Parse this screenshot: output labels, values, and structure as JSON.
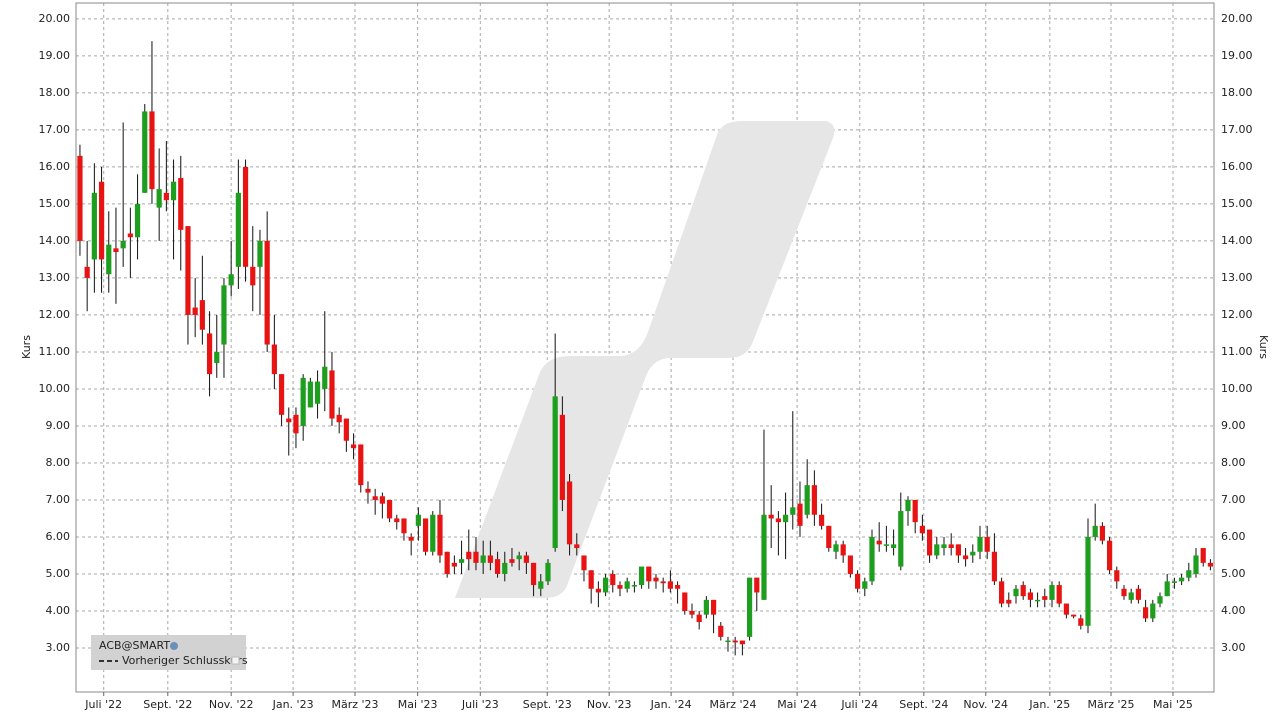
{
  "chart_data": {
    "type": "candlestick",
    "y_label": "Kurs",
    "up_color": "#1e9e1e",
    "down_color": "#e81414",
    "wick_color": "#111111",
    "grid": true,
    "legend": "lower left",
    "ylim": [
      1.81,
      20.43
    ],
    "yticks": [
      {
        "value": 3,
        "label": "3.00"
      },
      {
        "value": 4,
        "label": "4.00"
      },
      {
        "value": 5,
        "label": "5.00"
      },
      {
        "value": 6,
        "label": "6.00"
      },
      {
        "value": 7,
        "label": "7.00"
      },
      {
        "value": 8,
        "label": "8.00"
      },
      {
        "value": 9,
        "label": "9.00"
      },
      {
        "value": 10,
        "label": "10.00"
      },
      {
        "value": 11,
        "label": "11.00"
      },
      {
        "value": 12,
        "label": "12.00"
      },
      {
        "value": 13,
        "label": "13.00"
      },
      {
        "value": 14,
        "label": "14.00"
      },
      {
        "value": 15,
        "label": "15.00"
      },
      {
        "value": 16,
        "label": "16.00"
      },
      {
        "value": 17,
        "label": "17.00"
      },
      {
        "value": 18,
        "label": "18.00"
      },
      {
        "value": 19,
        "label": "19.00"
      },
      {
        "value": 20,
        "label": "20.00"
      }
    ],
    "xlim": [
      -0.55,
      157.5
    ],
    "xticks": [
      {
        "value": 3.3,
        "label": "Juli '22"
      },
      {
        "value": 12.2,
        "label": "Sept. '22"
      },
      {
        "value": 21.0,
        "label": "Nov. '22"
      },
      {
        "value": 29.6,
        "label": "Jan. '23"
      },
      {
        "value": 38.2,
        "label": "März '23"
      },
      {
        "value": 46.9,
        "label": "Mai '23"
      },
      {
        "value": 55.6,
        "label": "Juli '23"
      },
      {
        "value": 64.9,
        "label": "Sept. '23"
      },
      {
        "value": 73.5,
        "label": "Nov. '23"
      },
      {
        "value": 82.1,
        "label": "Jan. '24"
      },
      {
        "value": 90.7,
        "label": "März '24"
      },
      {
        "value": 99.6,
        "label": "Mai '24"
      },
      {
        "value": 108.3,
        "label": "Juli '24"
      },
      {
        "value": 117.2,
        "label": "Sept. '24"
      },
      {
        "value": 125.8,
        "label": "Nov. '24"
      },
      {
        "value": 134.7,
        "label": "Jan. '25"
      },
      {
        "value": 143.2,
        "label": "März '25"
      },
      {
        "value": 151.8,
        "label": "Mai '25"
      }
    ],
    "series": [
      {
        "name": "ACB@SMART",
        "open": [
          16.3,
          13.3,
          13.5,
          15.6,
          13.1,
          13.8,
          13.8,
          14.2,
          14.1,
          15.3,
          17.5,
          14.9,
          15.3,
          15.1,
          15.7,
          14.4,
          12.2,
          12.4,
          11.5,
          10.7,
          11.2,
          12.8,
          13.3,
          16.0,
          13.3,
          13.3,
          14.0,
          11.2,
          10.4,
          9.2,
          9.3,
          9.0,
          9.5,
          9.6,
          10.0,
          10.5,
          9.3,
          9.2,
          8.5,
          8.5,
          7.3,
          7.1,
          7.1,
          7.0,
          6.5,
          6.5,
          6.0,
          6.3,
          6.5,
          5.6,
          6.6,
          5.6,
          5.3,
          5.3,
          5.6,
          5.6,
          5.3,
          5.5,
          5.4,
          5.0,
          5.4,
          5.4,
          5.5,
          5.3,
          4.6,
          4.8,
          5.7,
          9.3,
          7.5,
          5.8,
          5.5,
          5.1,
          4.6,
          4.5,
          5.0,
          4.7,
          4.6,
          4.7,
          4.7,
          5.2,
          4.9,
          4.8,
          4.8,
          4.7,
          4.5,
          4.0,
          3.9,
          3.9,
          4.3,
          3.6,
          3.2,
          3.2,
          3.2,
          3.3,
          4.9,
          4.3,
          6.6,
          6.5,
          6.4,
          6.6,
          6.9,
          6.6,
          7.4,
          6.6,
          6.3,
          5.6,
          5.8,
          5.5,
          5.0,
          4.6,
          4.8,
          5.9,
          5.8,
          5.7,
          5.2,
          6.7,
          7.0,
          6.3,
          6.2,
          5.5,
          5.7,
          5.8,
          5.8,
          5.5,
          5.5,
          5.6,
          6.0,
          5.6,
          4.8,
          4.3,
          4.4,
          4.7,
          4.5,
          4.3,
          4.4,
          4.3,
          4.7,
          4.2,
          3.9,
          3.8,
          3.6,
          6.0,
          6.3,
          5.9,
          5.1,
          4.6,
          4.3,
          4.6,
          4.1,
          3.8,
          4.2,
          4.4,
          4.8,
          4.8,
          4.9,
          5.0,
          5.7,
          5.3
        ],
        "high": [
          16.6,
          14.0,
          16.1,
          16.0,
          14.8,
          14.9,
          17.2,
          14.9,
          15.8,
          17.7,
          19.4,
          16.5,
          16.7,
          16.2,
          16.3,
          14.4,
          13.0,
          13.6,
          12.1,
          12.0,
          13.0,
          14.0,
          16.2,
          16.2,
          14.4,
          14.3,
          14.8,
          12.0,
          10.4,
          9.5,
          9.5,
          10.4,
          10.3,
          10.5,
          12.1,
          11.0,
          9.5,
          9.2,
          8.8,
          8.5,
          7.5,
          7.3,
          7.2,
          7.0,
          6.6,
          6.5,
          6.1,
          6.8,
          6.5,
          6.7,
          7.0,
          5.6,
          5.5,
          5.9,
          6.2,
          6.0,
          5.9,
          5.9,
          5.6,
          5.6,
          5.7,
          5.6,
          5.6,
          5.3,
          5.0,
          5.4,
          11.5,
          9.8,
          7.7,
          6.1,
          5.5,
          5.1,
          4.8,
          5.0,
          5.1,
          4.8,
          4.9,
          4.8,
          5.2,
          5.2,
          5.0,
          4.9,
          5.1,
          4.8,
          4.5,
          4.2,
          4.0,
          4.4,
          4.3,
          3.7,
          3.3,
          3.3,
          3.2,
          4.9,
          4.9,
          8.9,
          7.4,
          6.7,
          7.2,
          9.4,
          7.5,
          8.1,
          7.8,
          6.9,
          6.3,
          5.9,
          5.9,
          5.5,
          5.1,
          4.9,
          6.2,
          6.4,
          6.3,
          6.2,
          7.2,
          7.1,
          7.0,
          6.6,
          6.2,
          6.0,
          6.0,
          6.1,
          5.8,
          5.7,
          5.8,
          6.3,
          6.3,
          6.1,
          4.9,
          4.5,
          4.7,
          4.8,
          4.6,
          4.5,
          4.6,
          4.8,
          4.8,
          4.2,
          3.9,
          3.9,
          6.5,
          6.9,
          6.4,
          6.0,
          5.2,
          4.7,
          4.6,
          4.7,
          4.3,
          4.3,
          4.5,
          5.0,
          4.9,
          5.0,
          5.3,
          5.7,
          5.7,
          5.4
        ],
        "low": [
          13.6,
          12.1,
          12.6,
          12.6,
          12.6,
          12.3,
          13.3,
          13.0,
          13.5,
          15.3,
          15.0,
          14.0,
          14.8,
          13.5,
          13.2,
          11.2,
          11.4,
          11.2,
          9.8,
          10.3,
          10.3,
          12.5,
          12.7,
          12.9,
          12.1,
          12.0,
          11.0,
          10.0,
          9.0,
          8.2,
          8.4,
          8.6,
          9.5,
          9.2,
          9.4,
          9.0,
          8.8,
          8.3,
          8.1,
          7.2,
          6.9,
          6.6,
          6.5,
          6.4,
          6.2,
          5.9,
          5.5,
          5.9,
          5.5,
          5.5,
          5.3,
          4.9,
          5.0,
          5.0,
          5.1,
          5.1,
          5.0,
          5.1,
          4.9,
          4.8,
          5.2,
          5.1,
          5.0,
          4.4,
          4.4,
          4.7,
          5.6,
          6.7,
          5.5,
          5.5,
          4.8,
          4.2,
          4.1,
          4.4,
          4.5,
          4.4,
          4.5,
          4.5,
          4.6,
          4.6,
          4.6,
          4.5,
          4.5,
          4.2,
          3.9,
          3.8,
          3.5,
          3.8,
          3.4,
          3.2,
          2.9,
          2.8,
          2.8,
          3.2,
          4.0,
          4.3,
          5.7,
          5.5,
          5.4,
          6.2,
          6.0,
          6.5,
          6.3,
          6.2,
          5.6,
          5.4,
          5.3,
          4.9,
          4.5,
          4.4,
          4.7,
          5.6,
          5.6,
          5.5,
          5.1,
          6.3,
          6.1,
          5.9,
          5.3,
          5.4,
          5.5,
          5.5,
          5.3,
          5.2,
          5.3,
          5.4,
          5.4,
          4.7,
          4.1,
          4.1,
          4.2,
          4.3,
          4.1,
          4.1,
          4.1,
          4.1,
          4.1,
          3.8,
          3.8,
          3.5,
          3.4,
          5.9,
          5.8,
          5.0,
          4.6,
          4.3,
          4.2,
          4.2,
          3.7,
          3.7,
          4.1,
          4.4,
          4.6,
          4.7,
          4.8,
          4.9,
          5.2,
          5.1
        ],
        "close": [
          14.0,
          13.0,
          15.3,
          13.5,
          13.9,
          13.7,
          14.0,
          14.1,
          15.0,
          17.5,
          15.4,
          15.4,
          15.1,
          15.6,
          14.3,
          12.0,
          12.0,
          11.6,
          10.4,
          11.0,
          12.8,
          13.1,
          15.3,
          13.3,
          12.8,
          14.0,
          11.2,
          10.4,
          9.3,
          9.1,
          8.8,
          10.3,
          10.2,
          10.2,
          10.6,
          9.2,
          9.1,
          8.6,
          8.4,
          7.4,
          7.2,
          7.0,
          6.9,
          6.5,
          6.4,
          6.1,
          5.9,
          6.6,
          5.6,
          6.6,
          5.5,
          5.0,
          5.2,
          5.4,
          5.4,
          5.3,
          5.5,
          5.3,
          5.0,
          5.3,
          5.3,
          5.5,
          5.3,
          4.7,
          4.8,
          5.3,
          9.8,
          7.0,
          5.8,
          5.7,
          5.1,
          4.6,
          4.5,
          4.9,
          4.7,
          4.6,
          4.8,
          4.7,
          5.2,
          4.8,
          4.8,
          4.75,
          4.6,
          4.6,
          4.0,
          3.9,
          3.7,
          4.3,
          3.9,
          3.3,
          3.2,
          3.15,
          3.1,
          4.9,
          4.5,
          6.6,
          6.5,
          6.4,
          6.6,
          6.8,
          6.3,
          7.4,
          6.6,
          6.3,
          5.7,
          5.8,
          5.5,
          5.0,
          4.6,
          4.8,
          6.0,
          5.8,
          5.8,
          5.8,
          6.7,
          7.0,
          6.4,
          6.1,
          5.5,
          5.8,
          5.8,
          5.7,
          5.5,
          5.4,
          5.6,
          6.0,
          5.6,
          4.8,
          4.2,
          4.2,
          4.6,
          4.4,
          4.3,
          4.3,
          4.3,
          4.7,
          4.2,
          3.9,
          3.85,
          3.6,
          6.0,
          6.3,
          5.9,
          5.1,
          4.8,
          4.4,
          4.5,
          4.3,
          3.8,
          4.2,
          4.4,
          4.8,
          4.8,
          4.9,
          5.1,
          5.5,
          5.3,
          5.2
        ]
      },
      {
        "name": "Vorheriger Schlusskurs",
        "color": "#333333"
      }
    ]
  }
}
